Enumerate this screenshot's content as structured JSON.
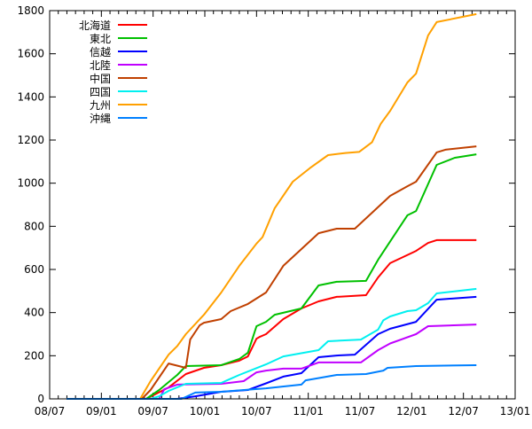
{
  "chart_data": {
    "type": "line",
    "title": "",
    "xlabel": "",
    "ylabel": "",
    "x_unit": "months since 08/07",
    "xlim": [
      0,
      54
    ],
    "ylim": [
      0,
      1800
    ],
    "x_ticks": [
      {
        "value": 0,
        "label": "08/07"
      },
      {
        "value": 6,
        "label": "09/01"
      },
      {
        "value": 12,
        "label": "09/07"
      },
      {
        "value": 18,
        "label": "10/01"
      },
      {
        "value": 24,
        "label": "10/07"
      },
      {
        "value": 30,
        "label": "11/01"
      },
      {
        "value": 36,
        "label": "11/07"
      },
      {
        "value": 42,
        "label": "12/01"
      },
      {
        "value": 48,
        "label": "12/07"
      },
      {
        "value": 54,
        "label": "13/01"
      }
    ],
    "y_ticks": [
      0,
      200,
      400,
      600,
      800,
      1000,
      1200,
      1400,
      1600,
      1800
    ],
    "grid": false,
    "legend_position": "top-left",
    "series": [
      {
        "name": "北海道",
        "color": "#ff0000",
        "points": [
          [
            1.95,
            0
          ],
          [
            11.2,
            0
          ],
          [
            13.8,
            53
          ],
          [
            15.8,
            115
          ],
          [
            17.9,
            144
          ],
          [
            19.9,
            156
          ],
          [
            22.0,
            177
          ],
          [
            23.0,
            197
          ],
          [
            24.0,
            279
          ],
          [
            24.4,
            288
          ],
          [
            25.1,
            300
          ],
          [
            27.1,
            370
          ],
          [
            29.2,
            419
          ],
          [
            31.2,
            452
          ],
          [
            33.3,
            473
          ],
          [
            36.7,
            481
          ],
          [
            38.1,
            563
          ],
          [
            39.5,
            629
          ],
          [
            42.5,
            686
          ],
          [
            43.9,
            723
          ],
          [
            44.9,
            736
          ],
          [
            49.5,
            736
          ]
        ]
      },
      {
        "name": "東北",
        "color": "#00c000",
        "points": [
          [
            1.95,
            0
          ],
          [
            11.2,
            0
          ],
          [
            12.7,
            41
          ],
          [
            14.8,
            111
          ],
          [
            15.8,
            152
          ],
          [
            19.9,
            156
          ],
          [
            22.0,
            185
          ],
          [
            23.0,
            214
          ],
          [
            24.0,
            337
          ],
          [
            25.1,
            357
          ],
          [
            26.1,
            390
          ],
          [
            29.2,
            419
          ],
          [
            31.2,
            526
          ],
          [
            33.3,
            543
          ],
          [
            36.7,
            547
          ],
          [
            38.1,
            645
          ],
          [
            39.5,
            730
          ],
          [
            41.5,
            851
          ],
          [
            42.5,
            871
          ],
          [
            44.9,
            1085
          ],
          [
            47.0,
            1118
          ],
          [
            49.5,
            1134
          ]
        ]
      },
      {
        "name": "信越",
        "color": "#0000ff",
        "points": [
          [
            1.95,
            0
          ],
          [
            14.8,
            0
          ],
          [
            16.9,
            12
          ],
          [
            19.9,
            33
          ],
          [
            23.0,
            41
          ],
          [
            25.1,
            72
          ],
          [
            27.1,
            103
          ],
          [
            29.2,
            119
          ],
          [
            31.2,
            193
          ],
          [
            33.3,
            201
          ],
          [
            35.4,
            205
          ],
          [
            38.1,
            300
          ],
          [
            39.5,
            325
          ],
          [
            42.5,
            357
          ],
          [
            44.9,
            460
          ],
          [
            49.5,
            473
          ]
        ]
      },
      {
        "name": "北陸",
        "color": "#c000ff",
        "points": [
          [
            1.95,
            0
          ],
          [
            12.7,
            0
          ],
          [
            13.3,
            45
          ],
          [
            14.8,
            66
          ],
          [
            19.9,
            70
          ],
          [
            22.5,
            82
          ],
          [
            24.0,
            123
          ],
          [
            25.1,
            131
          ],
          [
            27.1,
            140
          ],
          [
            29.2,
            140
          ],
          [
            31.2,
            169
          ],
          [
            36.1,
            169
          ],
          [
            38.1,
            226
          ],
          [
            39.5,
            257
          ],
          [
            42.5,
            300
          ],
          [
            43.9,
            337
          ],
          [
            49.5,
            345
          ]
        ]
      },
      {
        "name": "中国",
        "color": "#c04000",
        "points": [
          [
            1.95,
            0
          ],
          [
            10.7,
            0
          ],
          [
            11.7,
            41
          ],
          [
            13.8,
            164
          ],
          [
            15.8,
            144
          ],
          [
            16.3,
            275
          ],
          [
            17.4,
            341
          ],
          [
            17.9,
            353
          ],
          [
            19.9,
            370
          ],
          [
            21.0,
            407
          ],
          [
            23.0,
            440
          ],
          [
            25.1,
            493
          ],
          [
            27.1,
            617
          ],
          [
            31.2,
            768
          ],
          [
            33.3,
            789
          ],
          [
            35.4,
            789
          ],
          [
            37.4,
            863
          ],
          [
            39.5,
            941
          ],
          [
            41.5,
            986
          ],
          [
            42.5,
            1007
          ],
          [
            44.9,
            1143
          ],
          [
            45.9,
            1155
          ],
          [
            49.5,
            1171
          ]
        ]
      },
      {
        "name": "四国",
        "color": "#00f0f0",
        "points": [
          [
            1.95,
            0
          ],
          [
            11.7,
            0
          ],
          [
            12.7,
            12
          ],
          [
            13.8,
            37
          ],
          [
            15.8,
            70
          ],
          [
            19.9,
            74
          ],
          [
            22.0,
            111
          ],
          [
            25.1,
            160
          ],
          [
            27.1,
            197
          ],
          [
            31.2,
            226
          ],
          [
            32.3,
            267
          ],
          [
            36.1,
            275
          ],
          [
            38.1,
            321
          ],
          [
            38.7,
            364
          ],
          [
            39.5,
            382
          ],
          [
            41.5,
            407
          ],
          [
            42.5,
            411
          ],
          [
            43.9,
            444
          ],
          [
            44.9,
            489
          ],
          [
            49.5,
            510
          ]
        ]
      },
      {
        "name": "九州",
        "color": "#ffa000",
        "points": [
          [
            1.95,
            0
          ],
          [
            10.5,
            0
          ],
          [
            11.7,
            82
          ],
          [
            13.8,
            205
          ],
          [
            14.8,
            245
          ],
          [
            15.8,
            300
          ],
          [
            17.9,
            390
          ],
          [
            19.9,
            493
          ],
          [
            22.0,
            617
          ],
          [
            24.0,
            720
          ],
          [
            24.7,
            750
          ],
          [
            26.1,
            884
          ],
          [
            28.2,
            1007
          ],
          [
            30.2,
            1070
          ],
          [
            32.3,
            1130
          ],
          [
            34.3,
            1140
          ],
          [
            35.9,
            1145
          ],
          [
            37.4,
            1190
          ],
          [
            38.4,
            1275
          ],
          [
            39.5,
            1335
          ],
          [
            41.5,
            1467
          ],
          [
            42.5,
            1508
          ],
          [
            43.9,
            1685
          ],
          [
            44.9,
            1747
          ],
          [
            49.5,
            1784
          ]
        ]
      },
      {
        "name": "沖縄",
        "color": "#0080ff",
        "points": [
          [
            1.95,
            0
          ],
          [
            15.3,
            0
          ],
          [
            16.9,
            29
          ],
          [
            19.9,
            33
          ],
          [
            25.1,
            49
          ],
          [
            29.2,
            66
          ],
          [
            29.7,
            86
          ],
          [
            33.3,
            111
          ],
          [
            36.7,
            115
          ],
          [
            38.7,
            131
          ],
          [
            39.2,
            144
          ],
          [
            42.5,
            152
          ],
          [
            49.5,
            156
          ]
        ]
      }
    ]
  }
}
